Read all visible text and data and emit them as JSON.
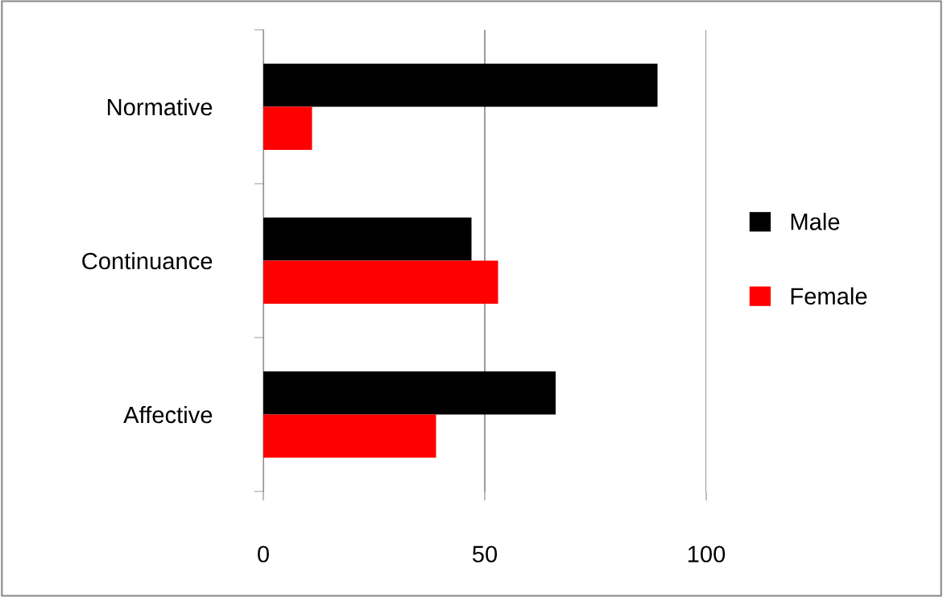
{
  "chart_data": {
    "type": "bar",
    "orientation": "horizontal",
    "categories": [
      "Normative",
      "Continuance",
      "Affective"
    ],
    "series": [
      {
        "name": "Male",
        "color": "#000000",
        "values": [
          89,
          47,
          66
        ]
      },
      {
        "name": "Female",
        "color": "#ff0000",
        "values": [
          11,
          53,
          39
        ]
      }
    ],
    "xlim": [
      0,
      100
    ],
    "xticks": [
      0,
      50,
      100
    ],
    "grid": "x",
    "legend": "right"
  }
}
